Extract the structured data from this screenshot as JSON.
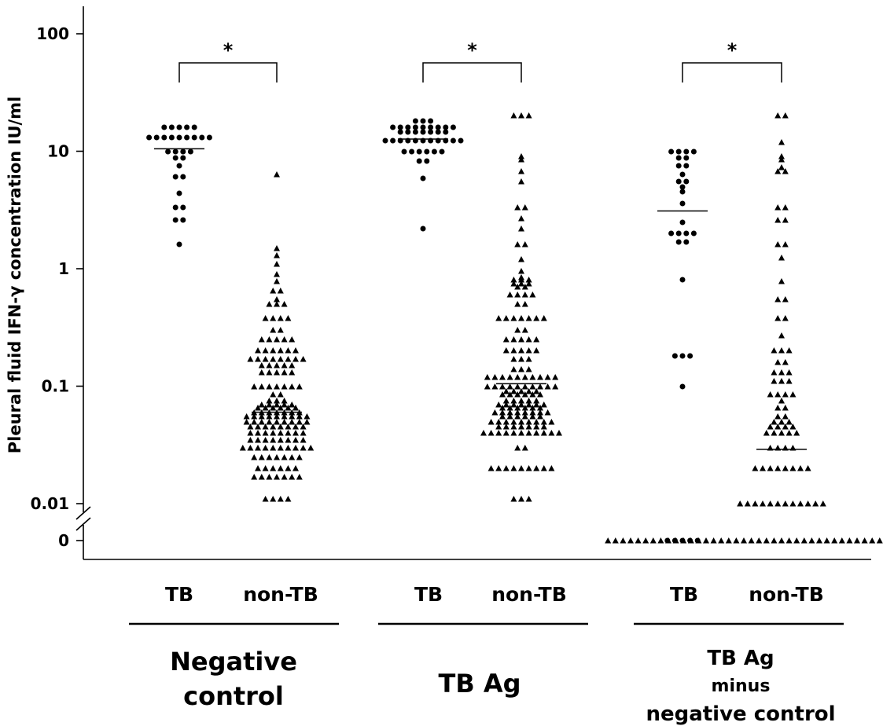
{
  "chart_data": {
    "type": "scatter",
    "ylabel": "Pleural fluid IFN-γ concentration  IU/ml",
    "yscale": "log",
    "ylim": [
      0,
      100
    ],
    "ytick_labels": [
      "100",
      "10",
      "1",
      "0.1",
      "0.01",
      "0"
    ],
    "yticks": [
      100,
      10,
      1,
      0.1,
      0.01,
      0
    ],
    "axis_break": true,
    "marker_legend": {
      "TB": "circle",
      "non-TB": "triangle"
    },
    "groups": [
      {
        "name": "Negative control",
        "significance": "*",
        "series": [
          {
            "name": "TB",
            "marker": "circle",
            "median": 10.5,
            "values": [
              16,
              16,
              16,
              16,
              16,
              13,
              13,
              13,
              13,
              13,
              13,
              13,
              13,
              13,
              10,
              10,
              10,
              10,
              8.8,
              8.8,
              7.5,
              6.1,
              6.1,
              4.4,
              3.3,
              3.3,
              2.6,
              2.6,
              1.6
            ]
          },
          {
            "name": "non-TB",
            "marker": "triangle",
            "median": 0.06,
            "values": [
              6.3,
              1.5,
              1.3,
              1.1,
              0.9,
              0.78,
              0.65,
              0.65,
              0.55,
              0.5,
              0.5,
              0.5,
              0.38,
              0.38,
              0.38,
              0.38,
              0.3,
              0.3,
              0.25,
              0.25,
              0.25,
              0.25,
              0.25,
              0.2,
              0.2,
              0.2,
              0.2,
              0.2,
              0.2,
              0.17,
              0.17,
              0.17,
              0.17,
              0.17,
              0.17,
              0.17,
              0.17,
              0.15,
              0.15,
              0.15,
              0.15,
              0.15,
              0.13,
              0.13,
              0.13,
              0.13,
              0.13,
              0.1,
              0.1,
              0.1,
              0.1,
              0.1,
              0.1,
              0.1,
              0.085,
              0.085,
              0.075,
              0.075,
              0.075,
              0.07,
              0.07,
              0.07,
              0.07,
              0.07,
              0.065,
              0.065,
              0.065,
              0.065,
              0.065,
              0.065,
              0.06,
              0.06,
              0.06,
              0.06,
              0.06,
              0.06,
              0.06,
              0.055,
              0.055,
              0.055,
              0.055,
              0.055,
              0.055,
              0.055,
              0.055,
              0.055,
              0.05,
              0.05,
              0.05,
              0.05,
              0.05,
              0.05,
              0.05,
              0.05,
              0.05,
              0.045,
              0.045,
              0.045,
              0.045,
              0.045,
              0.045,
              0.045,
              0.045,
              0.04,
              0.04,
              0.04,
              0.04,
              0.04,
              0.04,
              0.04,
              0.04,
              0.035,
              0.035,
              0.035,
              0.035,
              0.035,
              0.035,
              0.035,
              0.035,
              0.03,
              0.03,
              0.03,
              0.03,
              0.03,
              0.03,
              0.03,
              0.03,
              0.03,
              0.03,
              0.025,
              0.025,
              0.025,
              0.025,
              0.025,
              0.025,
              0.025,
              0.02,
              0.02,
              0.02,
              0.02,
              0.02,
              0.02,
              0.017,
              0.017,
              0.017,
              0.017,
              0.017,
              0.017,
              0.017,
              0.011,
              0.011,
              0.011,
              0.011
            ]
          }
        ]
      },
      {
        "name": "TB Ag",
        "significance": "*",
        "series": [
          {
            "name": "TB",
            "marker": "circle",
            "median": 12.7,
            "values": [
              18,
              18,
              18,
              16,
              16,
              16,
              16,
              16,
              16,
              16,
              16,
              16,
              14.5,
              14.5,
              14.5,
              14.5,
              14.5,
              14.5,
              14.5,
              12.4,
              12.4,
              12.4,
              12.4,
              12.4,
              12.4,
              12.4,
              12.4,
              12.4,
              12.4,
              12.4,
              10,
              10,
              10,
              10,
              10,
              10,
              8.3,
              8.3,
              5.9,
              2.2
            ]
          },
          {
            "name": "non-TB",
            "marker": "triangle",
            "median": 0.105,
            "values": [
              20,
              20,
              20,
              9,
              8.5,
              6.8,
              5.5,
              3.3,
              3.3,
              2.7,
              2.2,
              1.6,
              1.6,
              1.2,
              0.95,
              0.85,
              0.8,
              0.8,
              0.8,
              0.75,
              0.75,
              0.75,
              0.7,
              0.7,
              0.6,
              0.6,
              0.6,
              0.6,
              0.5,
              0.5,
              0.38,
              0.38,
              0.38,
              0.38,
              0.38,
              0.38,
              0.38,
              0.3,
              0.3,
              0.25,
              0.25,
              0.25,
              0.25,
              0.25,
              0.2,
              0.2,
              0.2,
              0.2,
              0.2,
              0.17,
              0.17,
              0.17,
              0.14,
              0.14,
              0.14,
              0.12,
              0.12,
              0.12,
              0.12,
              0.12,
              0.12,
              0.12,
              0.12,
              0.12,
              0.12,
              0.1,
              0.1,
              0.1,
              0.1,
              0.1,
              0.1,
              0.1,
              0.1,
              0.1,
              0.1,
              0.09,
              0.09,
              0.09,
              0.09,
              0.09,
              0.085,
              0.085,
              0.085,
              0.085,
              0.085,
              0.085,
              0.075,
              0.075,
              0.075,
              0.075,
              0.075,
              0.07,
              0.07,
              0.07,
              0.07,
              0.07,
              0.07,
              0.07,
              0.065,
              0.065,
              0.065,
              0.065,
              0.065,
              0.065,
              0.06,
              0.06,
              0.06,
              0.06,
              0.06,
              0.06,
              0.06,
              0.06,
              0.055,
              0.055,
              0.055,
              0.055,
              0.055,
              0.055,
              0.05,
              0.05,
              0.05,
              0.05,
              0.05,
              0.05,
              0.05,
              0.05,
              0.05,
              0.045,
              0.045,
              0.045,
              0.045,
              0.045,
              0.045,
              0.045,
              0.04,
              0.04,
              0.04,
              0.04,
              0.04,
              0.04,
              0.04,
              0.04,
              0.04,
              0.04,
              0.04,
              0.03,
              0.03,
              0.02,
              0.02,
              0.02,
              0.02,
              0.02,
              0.02,
              0.02,
              0.02,
              0.02,
              0.011,
              0.011,
              0.011
            ]
          }
        ]
      },
      {
        "name": "TB Ag minus negative control",
        "significance": "*",
        "series": [
          {
            "name": "TB",
            "marker": "circle",
            "median": 3.1,
            "values": [
              10,
              10,
              10,
              10,
              8.8,
              8.8,
              7.5,
              7.5,
              6.3,
              5.5,
              5.5,
              5,
              4.5,
              3.6,
              2.5,
              2,
              2,
              2,
              2,
              1.7,
              1.7,
              0.8,
              0.18,
              0.18,
              0.18,
              0.1,
              0,
              0,
              0,
              0,
              0
            ]
          },
          {
            "name": "non-TB",
            "marker": "triangle",
            "median": 0.029,
            "values": [
              20,
              20,
              12,
              9,
              8.5,
              7.3,
              6.8,
              6.8,
              3.3,
              3.3,
              2.6,
              2.6,
              1.6,
              1.6,
              1.25,
              0.78,
              0.55,
              0.55,
              0.38,
              0.38,
              0.27,
              0.2,
              0.2,
              0.2,
              0.16,
              0.16,
              0.13,
              0.13,
              0.13,
              0.11,
              0.11,
              0.11,
              0.085,
              0.085,
              0.085,
              0.085,
              0.075,
              0.065,
              0.065,
              0.055,
              0.055,
              0.05,
              0.05,
              0.05,
              0.045,
              0.045,
              0.045,
              0.045,
              0.04,
              0.04,
              0.04,
              0.04,
              0.04,
              0.03,
              0.03,
              0.03,
              0.03,
              0.02,
              0.02,
              0.02,
              0.02,
              0.02,
              0.02,
              0.02,
              0.02,
              0.01,
              0.01,
              0.01,
              0.01,
              0.01,
              0.01,
              0.01,
              0.01,
              0.01,
              0.01,
              0.01,
              0.01,
              0,
              0,
              0,
              0,
              0,
              0,
              0,
              0,
              0,
              0,
              0,
              0,
              0,
              0,
              0,
              0,
              0,
              0,
              0,
              0,
              0,
              0,
              0,
              0,
              0,
              0,
              0,
              0,
              0,
              0,
              0,
              0,
              0,
              0,
              0,
              0,
              0,
              0,
              0,
              0,
              0,
              0,
              0,
              0,
              0,
              0,
              0
            ]
          }
        ]
      }
    ]
  },
  "labels": {
    "x_categories": [
      "TB",
      "non-TB",
      "TB",
      "non-TB",
      "TB",
      "non-TB"
    ],
    "group_titles": [
      [
        "Negative",
        "control"
      ],
      [
        "TB Ag"
      ],
      [
        "TB Ag",
        "minus",
        "negative control"
      ]
    ]
  }
}
